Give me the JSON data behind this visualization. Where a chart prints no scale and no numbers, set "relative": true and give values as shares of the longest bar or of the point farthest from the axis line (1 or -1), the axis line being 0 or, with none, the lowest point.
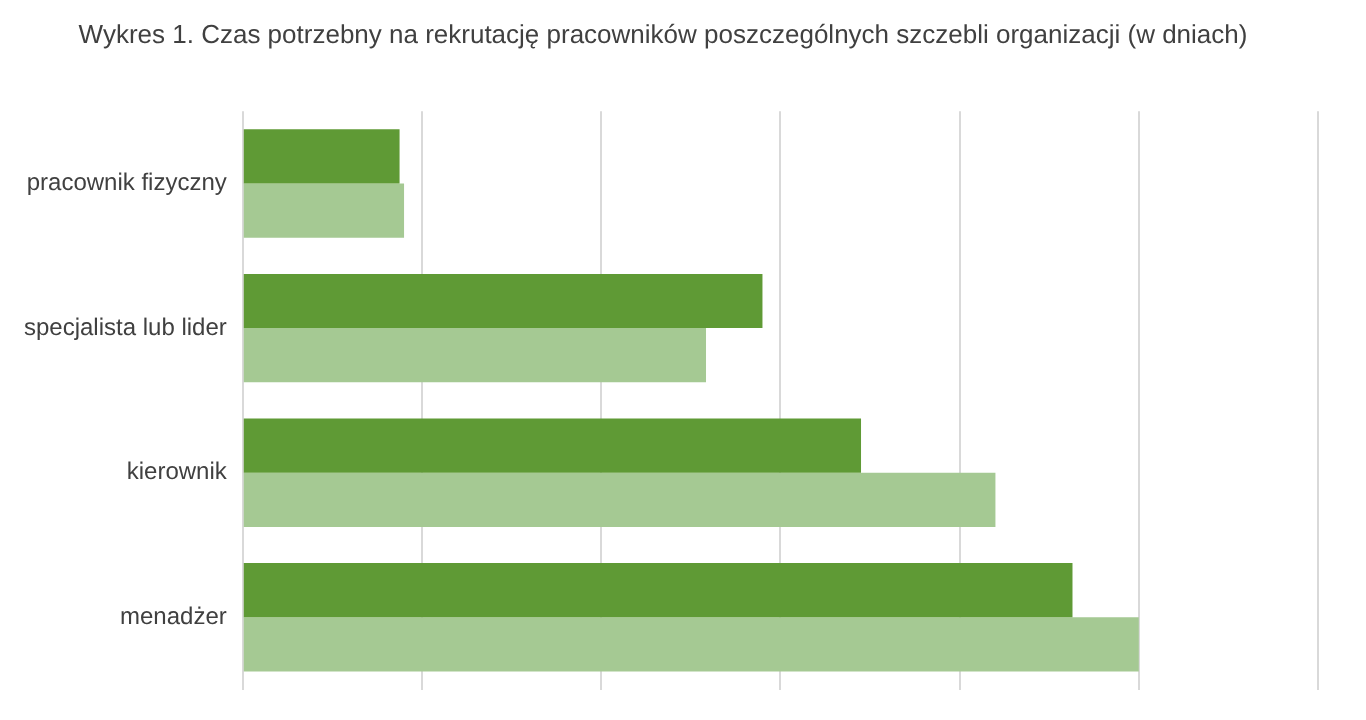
{
  "chart_data": {
    "type": "bar",
    "orientation": "horizontal",
    "relative": true,
    "title": "Wykres 1. Czas potrzebny na rekrutację pracowników poszczególnych szczebli organizacji (w dniach)",
    "categories": [
      "pracownik fizyczny",
      "specjalista lub lider",
      "kierownik",
      "menadżer"
    ],
    "series": [
      {
        "color": "#5f9a35",
        "values": [
          0.175,
          0.58,
          0.69,
          0.926
        ]
      },
      {
        "color": "#a5c993",
        "values": [
          0.18,
          0.517,
          0.84,
          1
        ]
      }
    ],
    "grid": "x"
  }
}
